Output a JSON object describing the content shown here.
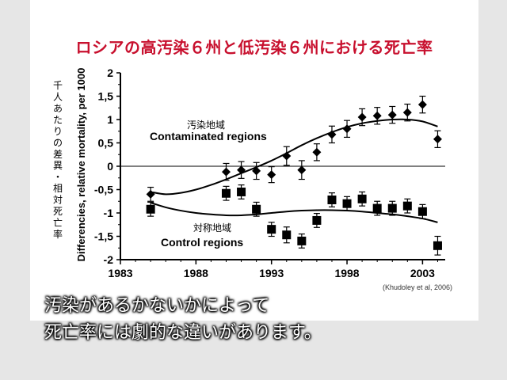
{
  "slide": {
    "title": "ロシアの高汚染６州と低汚染６州における死亡率",
    "caption_lines": [
      "汚染があるかないかによって",
      "死亡率には劇的な違いがあります。"
    ],
    "colors": {
      "title": "#c8102e",
      "background": "#ffffff",
      "page": "#e6e6e6",
      "data": "#000000"
    }
  },
  "chart_data": {
    "type": "scatter",
    "title": "",
    "xlabel": "",
    "ylabel": "Differencies, relative mortality, per 1000",
    "ylabel_jp": "千人あたりの差異・相対死亡率",
    "xlim": [
      1983,
      2004.5
    ],
    "ylim": [
      -2,
      2
    ],
    "x_ticks": [
      "1983",
      "1988",
      "1993",
      "1998",
      "2003"
    ],
    "y_ticks": [
      "2",
      "1,5",
      "1",
      "0,5",
      "0",
      "-0,5",
      "-1",
      "-1,5",
      "-2"
    ],
    "zero_line": true,
    "grid": false,
    "source": "(Khudoley et al, 2006)",
    "series": [
      {
        "name": "Contaminated regions",
        "name_jp": "汚染地域",
        "marker": "diamond",
        "points": [
          {
            "x": 1985,
            "y": -0.6,
            "err": 0.15
          },
          {
            "x": 1990,
            "y": -0.12,
            "err": 0.18
          },
          {
            "x": 1991,
            "y": -0.08,
            "err": 0.18
          },
          {
            "x": 1992,
            "y": -0.1,
            "err": 0.18
          },
          {
            "x": 1993,
            "y": -0.18,
            "err": 0.17
          },
          {
            "x": 1994,
            "y": 0.22,
            "err": 0.2
          },
          {
            "x": 1995,
            "y": -0.08,
            "err": 0.2
          },
          {
            "x": 1996,
            "y": 0.3,
            "err": 0.18
          },
          {
            "x": 1997,
            "y": 0.68,
            "err": 0.18
          },
          {
            "x": 1998,
            "y": 0.8,
            "err": 0.18
          },
          {
            "x": 1999,
            "y": 1.05,
            "err": 0.18
          },
          {
            "x": 2000,
            "y": 1.08,
            "err": 0.18
          },
          {
            "x": 2001,
            "y": 1.1,
            "err": 0.18
          },
          {
            "x": 2002,
            "y": 1.15,
            "err": 0.18
          },
          {
            "x": 2003,
            "y": 1.32,
            "err": 0.18
          },
          {
            "x": 2004,
            "y": 0.58,
            "err": 0.18
          }
        ],
        "trend": [
          [
            1985,
            -0.55
          ],
          [
            1986,
            -0.6
          ],
          [
            1987,
            -0.57
          ],
          [
            1988,
            -0.5
          ],
          [
            1989,
            -0.4
          ],
          [
            1990,
            -0.28
          ],
          [
            1991,
            -0.15
          ],
          [
            1992,
            -0.02
          ],
          [
            1993,
            0.12
          ],
          [
            1994,
            0.28
          ],
          [
            1995,
            0.45
          ],
          [
            1996,
            0.6
          ],
          [
            1997,
            0.73
          ],
          [
            1998,
            0.84
          ],
          [
            1999,
            0.92
          ],
          [
            2000,
            0.97
          ],
          [
            2001,
            1.0
          ],
          [
            2002,
            1.0
          ],
          [
            2003,
            0.96
          ],
          [
            2004,
            0.85
          ]
        ]
      },
      {
        "name": "Control regions",
        "name_jp": "対称地域",
        "marker": "square",
        "points": [
          {
            "x": 1985,
            "y": -0.92,
            "err": 0.15
          },
          {
            "x": 1990,
            "y": -0.58,
            "err": 0.15
          },
          {
            "x": 1991,
            "y": -0.55,
            "err": 0.15
          },
          {
            "x": 1992,
            "y": -0.92,
            "err": 0.15
          },
          {
            "x": 1993,
            "y": -1.35,
            "err": 0.15
          },
          {
            "x": 1994,
            "y": -1.47,
            "err": 0.17
          },
          {
            "x": 1995,
            "y": -1.6,
            "err": 0.15
          },
          {
            "x": 1996,
            "y": -1.16,
            "err": 0.15
          },
          {
            "x": 1997,
            "y": -0.72,
            "err": 0.15
          },
          {
            "x": 1998,
            "y": -0.8,
            "err": 0.15
          },
          {
            "x": 1999,
            "y": -0.7,
            "err": 0.15
          },
          {
            "x": 2000,
            "y": -0.9,
            "err": 0.15
          },
          {
            "x": 2001,
            "y": -0.9,
            "err": 0.15
          },
          {
            "x": 2002,
            "y": -0.85,
            "err": 0.15
          },
          {
            "x": 2003,
            "y": -0.97,
            "err": 0.15
          },
          {
            "x": 2004,
            "y": -1.7,
            "err": 0.2
          }
        ],
        "trend": [
          [
            1985,
            -0.78
          ],
          [
            1986,
            -0.88
          ],
          [
            1987,
            -0.95
          ],
          [
            1988,
            -1.0
          ],
          [
            1989,
            -1.03
          ],
          [
            1990,
            -1.05
          ],
          [
            1991,
            -1.05
          ],
          [
            1992,
            -1.03
          ],
          [
            1993,
            -1.0
          ],
          [
            1994,
            -0.97
          ],
          [
            1995,
            -0.95
          ],
          [
            1996,
            -0.94
          ],
          [
            1997,
            -0.94
          ],
          [
            1998,
            -0.95
          ],
          [
            1999,
            -0.97
          ],
          [
            2000,
            -1.0
          ],
          [
            2001,
            -1.03
          ],
          [
            2002,
            -1.07
          ],
          [
            2003,
            -1.12
          ],
          [
            2004,
            -1.2
          ]
        ]
      }
    ]
  }
}
